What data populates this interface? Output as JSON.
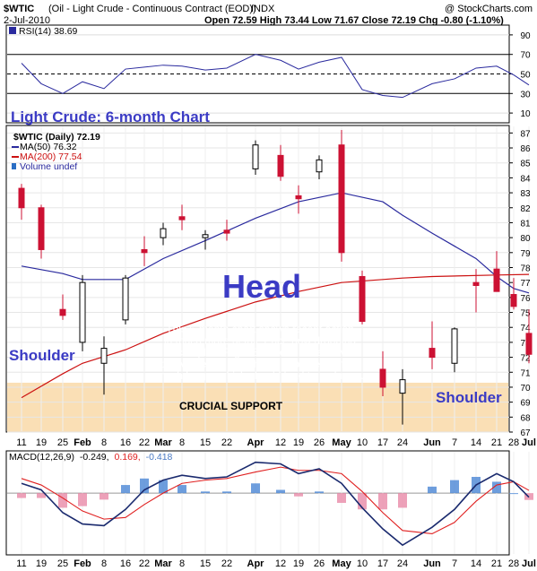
{
  "header": {
    "symbol": "$WTIC",
    "description": "(Oil - Light Crude - Continuous Contract (EOD))",
    "exchange": "INDX",
    "watermark": "@ StockCharts.com",
    "date": "2-Jul-2010",
    "ohlc_text": "Open 72.59  High 73.44  Low 71.67  Close 72.19  Chg -0.80 (-1.10%)"
  },
  "rsi": {
    "label": "RSI(14) 38.69",
    "ticks": [
      90,
      70,
      50,
      30,
      10
    ]
  },
  "main": {
    "label_title": "$WTIC (Daily) 72.19",
    "label_ma50": "MA(50) 76.32",
    "label_ma200": "MA(200) 77.54",
    "label_volume": "Volume undef",
    "colors": {
      "up": "#000000",
      "down": "#cc1133",
      "ma50": "#2a2a9e",
      "ma200": "#cc1111",
      "support": "#f9d9a8"
    },
    "ticks": [
      87,
      86,
      85,
      84,
      83,
      82,
      81,
      80,
      79,
      78,
      77,
      76,
      75,
      74,
      73,
      72,
      71,
      70,
      69,
      68,
      67
    ]
  },
  "annotations": {
    "title": "Light Crude: 6-month Chart",
    "head": "Head",
    "shoulder_left": "Shoulder",
    "shoulder_right": "Shoulder",
    "support": "CRUCIAL SUPPORT",
    "note": [
      "This 6-month chart shows recent action",
      "in much more detail. Price now dropping",
      "to complete Right Shoulder. Breakdown",
      "below the support shown expected before",
      "much longer which should lead to a plunge."
    ]
  },
  "macd": {
    "label_prefix": "MACD(12,26,9)",
    "label_v1": "-0.249,",
    "label_v2": "0.169,",
    "label_v3": "-0.418"
  },
  "x_axis": {
    "labels": [
      {
        "text": "11",
        "bold": false
      },
      {
        "text": "19",
        "bold": false
      },
      {
        "text": "25",
        "bold": false
      },
      {
        "text": "Feb",
        "bold": true
      },
      {
        "text": "8",
        "bold": false
      },
      {
        "text": "16",
        "bold": false
      },
      {
        "text": "22",
        "bold": false
      },
      {
        "text": "Mar",
        "bold": true
      },
      {
        "text": "8",
        "bold": false
      },
      {
        "text": "15",
        "bold": false
      },
      {
        "text": "22",
        "bold": false
      },
      {
        "text": "Apr",
        "bold": true
      },
      {
        "text": "12",
        "bold": false
      },
      {
        "text": "19",
        "bold": false
      },
      {
        "text": "26",
        "bold": false
      },
      {
        "text": "May",
        "bold": true
      },
      {
        "text": "10",
        "bold": false
      },
      {
        "text": "17",
        "bold": false
      },
      {
        "text": "24",
        "bold": false
      },
      {
        "text": "Jun",
        "bold": true
      },
      {
        "text": "7",
        "bold": false
      },
      {
        "text": "14",
        "bold": false
      },
      {
        "text": "21",
        "bold": false
      },
      {
        "text": "28",
        "bold": false
      },
      {
        "text": "Jul",
        "bold": true
      }
    ]
  },
  "chart_data": {
    "type": "candlestick",
    "title": "$WTIC (Daily)",
    "ylim": [
      67,
      87.5
    ],
    "support_zone": [
      67,
      70.3
    ],
    "price": [
      [
        "11",
        83.3,
        83.6,
        81.2,
        82.0
      ],
      [
        "19",
        82.0,
        82.2,
        78.6,
        79.2
      ],
      [
        "25",
        75.2,
        76.2,
        74.5,
        74.8
      ],
      [
        "Feb",
        73.0,
        77.5,
        72.4,
        77.0
      ],
      [
        "8",
        71.6,
        73.4,
        69.5,
        72.6
      ],
      [
        "16",
        74.5,
        77.5,
        74.2,
        77.3
      ],
      [
        "22",
        79.2,
        80.1,
        78.1,
        79.0
      ],
      [
        "Mar",
        80.0,
        81.0,
        79.5,
        80.6
      ],
      [
        "8",
        81.4,
        82.2,
        80.5,
        81.2
      ],
      [
        "15",
        80.0,
        80.5,
        79.2,
        80.2
      ],
      [
        "22",
        80.5,
        81.2,
        79.8,
        80.3
      ],
      [
        "Apr",
        84.6,
        86.5,
        84.2,
        86.2
      ],
      [
        "12",
        85.5,
        86.2,
        83.8,
        84.1
      ],
      [
        "19",
        82.8,
        83.5,
        81.6,
        82.6
      ],
      [
        "26",
        84.4,
        85.5,
        83.9,
        85.2
      ],
      [
        "May",
        86.2,
        87.2,
        78.4,
        79.0
      ],
      [
        "10",
        77.4,
        77.8,
        74.2,
        74.4
      ],
      [
        "17",
        71.2,
        72.4,
        69.4,
        70.0
      ],
      [
        "24",
        69.6,
        71.2,
        67.5,
        70.5
      ],
      [
        "Jun",
        72.6,
        74.4,
        71.2,
        72.0
      ],
      [
        "7",
        71.6,
        74.0,
        71.0,
        73.9
      ],
      [
        "14",
        77.0,
        77.9,
        75.0,
        76.8
      ],
      [
        "21",
        77.9,
        79.1,
        77.0,
        76.4
      ],
      [
        "28",
        76.2,
        77.3,
        75.2,
        75.4
      ],
      [
        "Jul",
        73.6,
        75.2,
        71.6,
        72.2
      ]
    ],
    "ma50": [
      [
        "11",
        78.1
      ],
      [
        "25",
        77.6
      ],
      [
        "Feb",
        77.2
      ],
      [
        "16",
        77.2
      ],
      [
        "Mar",
        78.6
      ],
      [
        "15",
        79.8
      ],
      [
        "Apr",
        81.3
      ],
      [
        "19",
        82.4
      ],
      [
        "May",
        83.0
      ],
      [
        "17",
        82.4
      ],
      [
        "24",
        81.5
      ],
      [
        "Jun",
        80.3
      ],
      [
        "14",
        78.6
      ],
      [
        "21",
        77.4
      ],
      [
        "28",
        76.6
      ],
      [
        "Jul",
        76.3
      ]
    ],
    "ma200": [
      [
        "11",
        69.3
      ],
      [
        "25",
        70.9
      ],
      [
        "Feb",
        71.6
      ],
      [
        "16",
        72.5
      ],
      [
        "Mar",
        73.6
      ],
      [
        "15",
        74.6
      ],
      [
        "Apr",
        75.7
      ],
      [
        "19",
        76.4
      ],
      [
        "May",
        77.0
      ],
      [
        "24",
        77.3
      ],
      [
        "Jun",
        77.4
      ],
      [
        "21",
        77.5
      ],
      [
        "Jul",
        77.54
      ]
    ],
    "rsi": [
      [
        "11",
        61
      ],
      [
        "19",
        40
      ],
      [
        "25",
        30
      ],
      [
        "Feb",
        42
      ],
      [
        "8",
        35
      ],
      [
        "16",
        55
      ],
      [
        "22",
        57
      ],
      [
        "Mar",
        59
      ],
      [
        "8",
        58
      ],
      [
        "15",
        54
      ],
      [
        "22",
        56
      ],
      [
        "Apr",
        70
      ],
      [
        "12",
        64
      ],
      [
        "19",
        55
      ],
      [
        "26",
        62
      ],
      [
        "May",
        67
      ],
      [
        "10",
        34
      ],
      [
        "17",
        28
      ],
      [
        "24",
        26
      ],
      [
        "Jun",
        40
      ],
      [
        "7",
        45
      ],
      [
        "14",
        56
      ],
      [
        "21",
        58
      ],
      [
        "28",
        49
      ],
      [
        "Jul",
        38.69
      ]
    ],
    "macd": [
      [
        "11",
        0.6
      ],
      [
        "19",
        0.2
      ],
      [
        "25",
        -1.2
      ],
      [
        "Feb",
        -1.9
      ],
      [
        "8",
        -2.0
      ],
      [
        "16",
        -1.0
      ],
      [
        "22",
        0.2
      ],
      [
        "Mar",
        0.8
      ],
      [
        "8",
        1.1
      ],
      [
        "15",
        0.9
      ],
      [
        "22",
        1.0
      ],
      [
        "Apr",
        1.9
      ],
      [
        "12",
        1.8
      ],
      [
        "19",
        1.2
      ],
      [
        "26",
        1.5
      ],
      [
        "May",
        0.6
      ],
      [
        "10",
        -0.9
      ],
      [
        "17",
        -2.2
      ],
      [
        "24",
        -3.2
      ],
      [
        "Jun",
        -2.1
      ],
      [
        "7",
        -1.0
      ],
      [
        "14",
        0.5
      ],
      [
        "21",
        1.2
      ],
      [
        "28",
        0.7
      ],
      [
        "Jul",
        -0.249
      ]
    ],
    "macd_signal": [
      [
        "11",
        0.9
      ],
      [
        "19",
        0.5
      ],
      [
        "25",
        -0.3
      ],
      [
        "Feb",
        -1.1
      ],
      [
        "8",
        -1.6
      ],
      [
        "16",
        -1.5
      ],
      [
        "22",
        -0.7
      ],
      [
        "Mar",
        0.0
      ],
      [
        "8",
        0.6
      ],
      [
        "15",
        0.8
      ],
      [
        "22",
        0.9
      ],
      [
        "Apr",
        1.3
      ],
      [
        "12",
        1.6
      ],
      [
        "19",
        1.4
      ],
      [
        "26",
        1.4
      ],
      [
        "May",
        1.2
      ],
      [
        "10",
        0.1
      ],
      [
        "17",
        -1.2
      ],
      [
        "24",
        -2.3
      ],
      [
        "Jun",
        -2.5
      ],
      [
        "7",
        -1.8
      ],
      [
        "14",
        -0.5
      ],
      [
        "21",
        0.5
      ],
      [
        "28",
        0.7
      ],
      [
        "Jul",
        0.169
      ]
    ]
  }
}
